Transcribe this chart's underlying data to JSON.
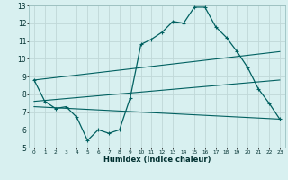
{
  "xlabel": "Humidex (Indice chaleur)",
  "bg_color": "#d8f0f0",
  "grid_color": "#c0d8d8",
  "line_color": "#006060",
  "xlim": [
    -0.5,
    23.5
  ],
  "ylim": [
    5,
    13
  ],
  "xticks": [
    0,
    1,
    2,
    3,
    4,
    5,
    6,
    7,
    8,
    9,
    10,
    11,
    12,
    13,
    14,
    15,
    16,
    17,
    18,
    19,
    20,
    21,
    22,
    23
  ],
  "yticks": [
    5,
    6,
    7,
    8,
    9,
    10,
    11,
    12,
    13
  ],
  "main_x": [
    0,
    1,
    2,
    3,
    4,
    5,
    6,
    7,
    8,
    9,
    10,
    11,
    12,
    13,
    14,
    15,
    16,
    17,
    18,
    19,
    20,
    21,
    22,
    23
  ],
  "main_y": [
    8.8,
    7.6,
    7.2,
    7.3,
    6.7,
    5.4,
    6.0,
    5.8,
    6.0,
    7.8,
    10.8,
    11.1,
    11.5,
    12.1,
    12.0,
    12.9,
    12.9,
    11.8,
    11.2,
    10.4,
    9.5,
    8.3,
    7.5,
    6.6
  ],
  "line1_x": [
    0,
    23
  ],
  "line1_y": [
    8.8,
    10.4
  ],
  "line2_x": [
    0,
    23
  ],
  "line2_y": [
    7.6,
    8.8
  ],
  "line3_x": [
    0,
    23
  ],
  "line3_y": [
    7.3,
    6.6
  ]
}
